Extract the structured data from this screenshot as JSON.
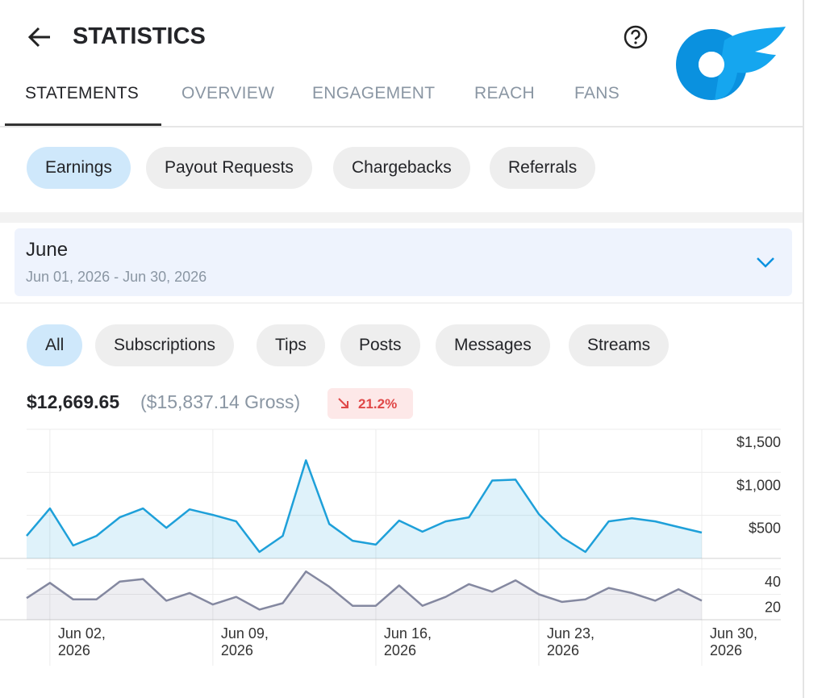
{
  "header": {
    "title": "STATISTICS"
  },
  "tabs": [
    "STATEMENTS",
    "OVERVIEW",
    "ENGAGEMENT",
    "REACH",
    "FANS"
  ],
  "sub_tabs": [
    "Earnings",
    "Payout Requests",
    "Chargebacks",
    "Referrals"
  ],
  "period": {
    "name": "June",
    "range": "Jun 01, 2026 - Jun 30, 2026"
  },
  "filters": [
    "All",
    "Subscriptions",
    "Tips",
    "Posts",
    "Messages",
    "Streams"
  ],
  "summary": {
    "net": "$12,669.65",
    "gross": "($15,837.14 Gross)",
    "change": "21.2%"
  },
  "chart_data": [
    {
      "type": "area",
      "x": [
        "Jun 01, 2026",
        "Jun 02, 2026",
        "Jun 03, 2026",
        "Jun 04, 2026",
        "Jun 05, 2026",
        "Jun 06, 2026",
        "Jun 07, 2026",
        "Jun 08, 2026",
        "Jun 09, 2026",
        "Jun 10, 2026",
        "Jun 11, 2026",
        "Jun 12, 2026",
        "Jun 13, 2026",
        "Jun 14, 2026",
        "Jun 15, 2026",
        "Jun 16, 2026",
        "Jun 17, 2026",
        "Jun 18, 2026",
        "Jun 19, 2026",
        "Jun 20, 2026",
        "Jun 21, 2026",
        "Jun 22, 2026",
        "Jun 23, 2026",
        "Jun 24, 2026",
        "Jun 25, 2026",
        "Jun 26, 2026",
        "Jun 27, 2026",
        "Jun 28, 2026",
        "Jun 29, 2026",
        "Jun 30, 2026"
      ],
      "series": [
        {
          "color": "#1ea0d9",
          "values": [
            262,
            580,
            150,
            262,
            477,
            580,
            355,
            570,
            505,
            430,
            75,
            262,
            1140,
            400,
            205,
            160,
            440,
            310,
            430,
            477,
            905,
            915,
            515,
            245,
            75,
            430,
            467,
            430,
            365,
            300
          ]
        }
      ],
      "ylim": [
        0,
        1500
      ],
      "yticks": [
        {
          "value": 500,
          "label": "$500"
        },
        {
          "value": 1000,
          "label": "$1,000"
        },
        {
          "value": 1500,
          "label": "$1,500"
        }
      ]
    },
    {
      "type": "area",
      "x": [
        "Jun 01, 2026",
        "Jun 02, 2026",
        "Jun 03, 2026",
        "Jun 04, 2026",
        "Jun 05, 2026",
        "Jun 06, 2026",
        "Jun 07, 2026",
        "Jun 08, 2026",
        "Jun 09, 2026",
        "Jun 10, 2026",
        "Jun 11, 2026",
        "Jun 12, 2026",
        "Jun 13, 2026",
        "Jun 14, 2026",
        "Jun 15, 2026",
        "Jun 16, 2026",
        "Jun 17, 2026",
        "Jun 18, 2026",
        "Jun 19, 2026",
        "Jun 20, 2026",
        "Jun 21, 2026",
        "Jun 22, 2026",
        "Jun 23, 2026",
        "Jun 24, 2026",
        "Jun 25, 2026",
        "Jun 26, 2026",
        "Jun 27, 2026",
        "Jun 28, 2026",
        "Jun 29, 2026",
        "Jun 30, 2026"
      ],
      "series": [
        {
          "color": "#8488a0",
          "values": [
            17,
            29,
            16,
            16,
            30,
            32,
            15,
            21,
            12,
            18,
            8,
            13,
            38,
            26,
            11,
            11,
            27,
            11,
            18,
            28,
            22,
            31,
            20,
            14,
            16,
            25,
            21,
            15,
            24,
            15
          ]
        }
      ],
      "ylim": [
        0,
        40
      ],
      "yticks": [
        20,
        40
      ],
      "xticks": [
        "Jun 02, 2026",
        "Jun 09, 2026",
        "Jun 16, 2026",
        "Jun 23, 2026",
        "Jun 30, 2026"
      ]
    }
  ]
}
